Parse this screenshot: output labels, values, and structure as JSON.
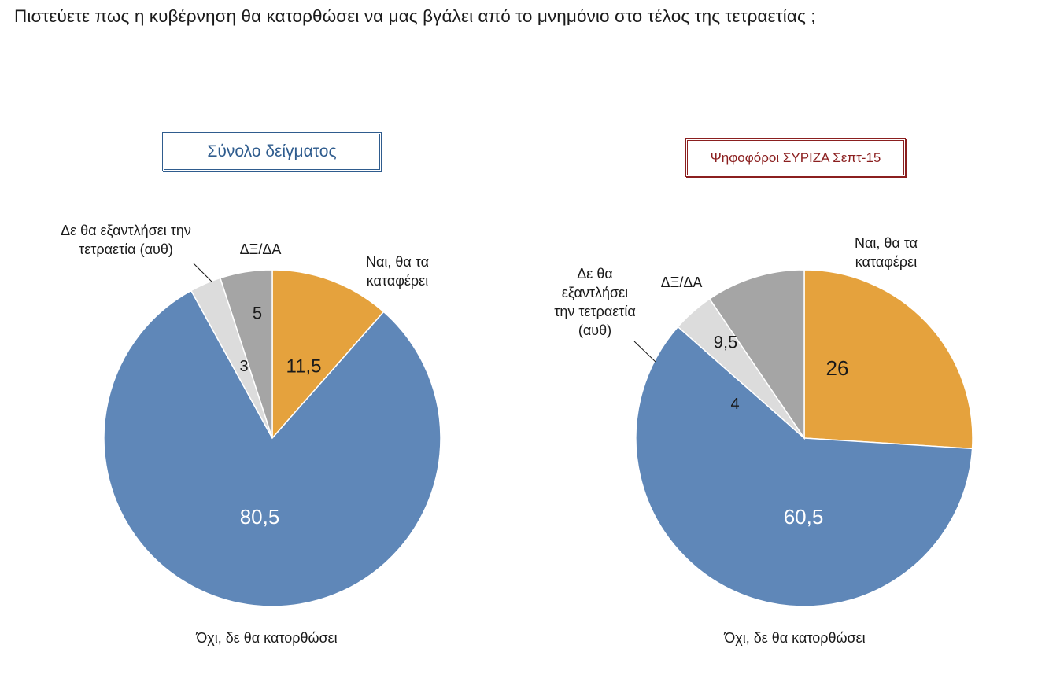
{
  "question": "Πιστεύετε πως η κυβέρνηση θα κατορθώσει να μας βγάλει από το μνημόνιο στο τέλος της τετραετίας ;",
  "chart_data": [
    {
      "type": "pie",
      "title": "Σύνολο δείγματος",
      "slices": [
        {
          "label": "Ναι, θα τα καταφέρει",
          "value": 11.5,
          "value_label": "11,5",
          "color": "#e5a23d"
        },
        {
          "label": "Όχι, δε θα κατορθώσει",
          "value": 80.5,
          "value_label": "80,5",
          "color": "#5f87b8"
        },
        {
          "label": "Δε θα εξαντλήσει την τετραετία (αυθ)",
          "value": 3,
          "value_label": "3",
          "color": "#dcdcdc"
        },
        {
          "label": "ΔΞ/ΔΑ",
          "value": 5,
          "value_label": "5",
          "color": "#a5a5a5"
        }
      ]
    },
    {
      "type": "pie",
      "title": "Ψηφοφόροι ΣΥΡΙΖΑ Σεπτ-15",
      "slices": [
        {
          "label": "Ναι, θα τα καταφέρει",
          "value": 26,
          "value_label": "26",
          "color": "#e5a23d"
        },
        {
          "label": "Όχι, δε θα κατορθώσει",
          "value": 60.5,
          "value_label": "60,5",
          "color": "#5f87b8"
        },
        {
          "label": "Δε θα εξαντλήσει την τετραετία (αυθ)",
          "value": 4,
          "value_label": "4",
          "color": "#dcdcdc"
        },
        {
          "label": "ΔΞ/ΔΑ",
          "value": 9.5,
          "value_label": "9,5",
          "color": "#a5a5a5"
        }
      ]
    }
  ],
  "labels": {
    "left": {
      "yes": [
        "Ναι, θα τα",
        "καταφέρει"
      ],
      "no": "Όχι, δε θα κατορθώσει",
      "exhaust": [
        "Δε θα εξαντλήσει την",
        "τετραετία (αυθ)"
      ],
      "dk": "ΔΞ/ΔΑ"
    },
    "right": {
      "yes": [
        "Ναι, θα τα",
        "καταφέρει"
      ],
      "no": "Όχι, δε θα κατορθώσει",
      "exhaust": [
        "Δε θα",
        "εξαντλήσει",
        "την τετραετία",
        "(αυθ)"
      ],
      "dk": "ΔΞ/ΔΑ"
    }
  }
}
